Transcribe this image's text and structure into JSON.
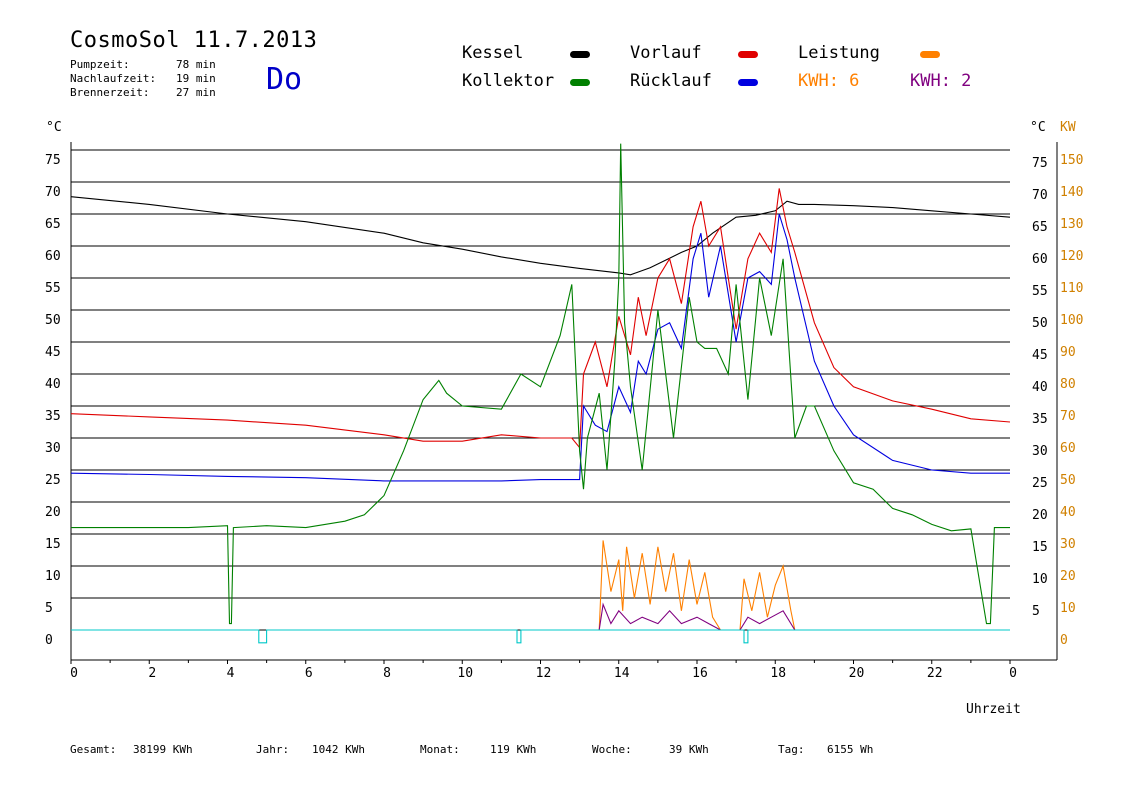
{
  "header": {
    "title": "CosmoSol 11.7.2013",
    "day": "Do",
    "stats": [
      {
        "label": "Pumpzeit:",
        "value": "78 min"
      },
      {
        "label": "Nachlaufzeit:",
        "value": "19 min"
      },
      {
        "label": "Brennerzeit:",
        "value": "27 min"
      }
    ]
  },
  "legend": {
    "kessel": {
      "label": "Kessel",
      "color": "#000000"
    },
    "vorlauf": {
      "label": "Vorlauf",
      "color": "#e00000"
    },
    "leistung": {
      "label": "Leistung",
      "color": "#ff8000"
    },
    "kollektor": {
      "label": "Kollektor",
      "color": "#008000"
    },
    "ruecklauf": {
      "label": "Rücklauf",
      "color": "#0000e0"
    },
    "kwh1": {
      "label": "KWH: 6",
      "color": "#ff8000"
    },
    "kwh2": {
      "label": "KWH: 2",
      "color": "#800080"
    }
  },
  "axes": {
    "left_unit": "°C",
    "right_unit_c": "°C",
    "right_unit_kw": "KW",
    "xlabel": "Uhrzeit"
  },
  "footer": [
    {
      "label": "Gesamt:",
      "value": "38199 KWh"
    },
    {
      "label": "Jahr:",
      "value": "1042 KWh"
    },
    {
      "label": "Monat:",
      "value": "119 KWh"
    },
    {
      "label": "Woche:",
      "value": "39 KWh"
    },
    {
      "label": "Tag:",
      "value": "6155 Wh"
    }
  ],
  "chart_data": {
    "type": "line",
    "x_ticks": [
      "0",
      "2",
      "4",
      "6",
      "8",
      "10",
      "12",
      "14",
      "16",
      "18",
      "20",
      "22",
      "0"
    ],
    "y_ticks_left": [
      "75",
      "70",
      "65",
      "60",
      "55",
      "50",
      "45",
      "40",
      "35",
      "30",
      "25",
      "20",
      "15",
      "10",
      "5",
      "0"
    ],
    "y_ticks_right_c": [
      "75",
      "70",
      "65",
      "60",
      "55",
      "50",
      "45",
      "40",
      "35",
      "30",
      "25",
      "20",
      "15",
      "10",
      "5",
      ""
    ],
    "y_ticks_right_kw": [
      "150",
      "140",
      "130",
      "120",
      "110",
      "100",
      "90",
      "80",
      "70",
      "60",
      "50",
      "40",
      "30",
      "20",
      "10",
      "0"
    ],
    "xlim": [
      0,
      24
    ],
    "ylim": [
      0,
      75
    ],
    "grid": true,
    "series": [
      {
        "name": "Kessel",
        "color": "#000000",
        "x": [
          0,
          2,
          4,
          6,
          8,
          9,
          10,
          11,
          12,
          13,
          14,
          14.3,
          14.8,
          15.2,
          15.6,
          16,
          16.4,
          17,
          17.5,
          18,
          18.3,
          18.6,
          19,
          20,
          21,
          22,
          23,
          24
        ],
        "y": [
          67.7,
          66.5,
          65,
          63.8,
          62,
          60.5,
          59.5,
          58.3,
          57.3,
          56.5,
          55.8,
          55.5,
          56.6,
          57.8,
          59,
          60,
          62,
          64.5,
          64.8,
          65.5,
          67,
          66.5,
          66.5,
          66.3,
          66,
          65.5,
          65,
          64.5
        ]
      },
      {
        "name": "Vorlauf",
        "color": "#e00000",
        "x": [
          0,
          2,
          4,
          6,
          8,
          9,
          10,
          11,
          12,
          12.8,
          13,
          13.1,
          13.4,
          13.7,
          14,
          14.3,
          14.5,
          14.7,
          15,
          15.3,
          15.6,
          15.9,
          16.1,
          16.3,
          16.6,
          17,
          17.3,
          17.6,
          17.9,
          18.1,
          18.3,
          18.5,
          19,
          19.5,
          20,
          21,
          22,
          23,
          24
        ],
        "y": [
          33.8,
          33.3,
          32.8,
          32,
          30.5,
          29.5,
          29.5,
          30.5,
          30,
          30,
          28.5,
          40,
          45,
          38,
          49,
          43,
          52,
          46,
          55,
          58,
          51,
          63,
          67,
          60,
          63,
          47,
          58,
          62,
          59,
          69,
          63,
          59,
          48,
          41,
          38,
          35.8,
          34.5,
          33,
          32.5
        ]
      },
      {
        "name": "Rücklauf",
        "color": "#0000e0",
        "x": [
          0,
          2,
          4,
          6,
          8,
          9,
          10,
          11,
          12,
          12.8,
          13,
          13.1,
          13.4,
          13.7,
          14,
          14.3,
          14.5,
          14.7,
          15,
          15.3,
          15.6,
          15.9,
          16.1,
          16.3,
          16.6,
          17,
          17.3,
          17.6,
          17.9,
          18.1,
          18.3,
          18.5,
          19,
          19.5,
          20,
          21,
          22,
          23,
          24
        ],
        "y": [
          24.5,
          24.3,
          24,
          23.8,
          23.3,
          23.3,
          23.3,
          23.3,
          23.5,
          23.5,
          23.5,
          35,
          32,
          31,
          38,
          34,
          42,
          40,
          47,
          48,
          44,
          58,
          62,
          52,
          60,
          45,
          55,
          56,
          54,
          65,
          61,
          55,
          42,
          35,
          30.5,
          26.5,
          25,
          24.5,
          24.5
        ]
      },
      {
        "name": "Kollektor",
        "color": "#008000",
        "x": [
          0,
          1,
          2,
          3,
          4,
          4.05,
          4.1,
          4.15,
          5,
          6,
          7,
          7.5,
          8,
          8.5,
          9,
          9.4,
          9.6,
          10,
          11,
          11.5,
          12,
          12.5,
          12.8,
          13,
          13.1,
          13.2,
          13.5,
          13.7,
          13.9,
          14,
          14.05,
          14.15,
          14.3,
          14.6,
          15,
          15.4,
          15.8,
          16,
          16.2,
          16.5,
          16.8,
          17,
          17.3,
          17.6,
          17.9,
          18.2,
          18.5,
          18.8,
          19,
          19.5,
          20,
          20.5,
          21,
          21.5,
          22,
          22.5,
          23,
          23.4,
          23.5,
          23.6,
          24
        ],
        "y": [
          16,
          16,
          16,
          16,
          16.3,
          1,
          1,
          16,
          16.3,
          16,
          17,
          18,
          21,
          28,
          36,
          39,
          37,
          35,
          34.5,
          40,
          38,
          46,
          54,
          28,
          22,
          30,
          37,
          25,
          42,
          55,
          76,
          48,
          38,
          25,
          50,
          30,
          52,
          45,
          44,
          44,
          40,
          54,
          36,
          55,
          46,
          58,
          30,
          35,
          35,
          28,
          23,
          22,
          19,
          18,
          16.5,
          15.5,
          15.8,
          1,
          1,
          16,
          16
        ]
      },
      {
        "name": "Leistung",
        "color": "#ff8000",
        "x": [
          13,
          13.5,
          13.6,
          13.8,
          14,
          14.1,
          14.2,
          14.4,
          14.6,
          14.8,
          15,
          15.2,
          15.4,
          15.6,
          15.8,
          16,
          16.2,
          16.4,
          16.6,
          17.1,
          17.2,
          17.4,
          17.6,
          17.8,
          18,
          18.2,
          18.4,
          18.5,
          24
        ],
        "y": [
          0,
          0,
          14,
          6,
          11,
          3,
          13,
          5,
          12,
          4,
          13,
          6,
          12,
          3,
          11,
          4,
          9,
          2,
          0,
          0,
          8,
          3,
          9,
          2,
          7,
          10,
          3,
          0,
          0
        ]
      },
      {
        "name": "KWH 2",
        "color": "#800080",
        "x": [
          13,
          13.5,
          13.6,
          13.8,
          14,
          14.3,
          14.6,
          15,
          15.3,
          15.6,
          16,
          16.3,
          16.6,
          17.1,
          17.3,
          17.6,
          17.9,
          18.2,
          18.5,
          24
        ],
        "y": [
          0,
          0,
          4,
          1,
          3,
          1,
          2,
          1,
          3,
          1,
          2,
          1,
          0,
          0,
          2,
          1,
          2,
          3,
          0,
          0
        ]
      },
      {
        "name": "Pumpe",
        "color": "#00c8c8",
        "x": [
          0,
          4.8,
          4.8,
          5.0,
          5.0,
          11.4,
          11.4,
          11.5,
          11.5,
          17.2,
          17.2,
          17.3,
          17.3,
          24
        ],
        "y": [
          0,
          0,
          -2,
          -2,
          0,
          0,
          -2,
          -2,
          0,
          0,
          -2,
          -2,
          0,
          0
        ]
      }
    ]
  }
}
